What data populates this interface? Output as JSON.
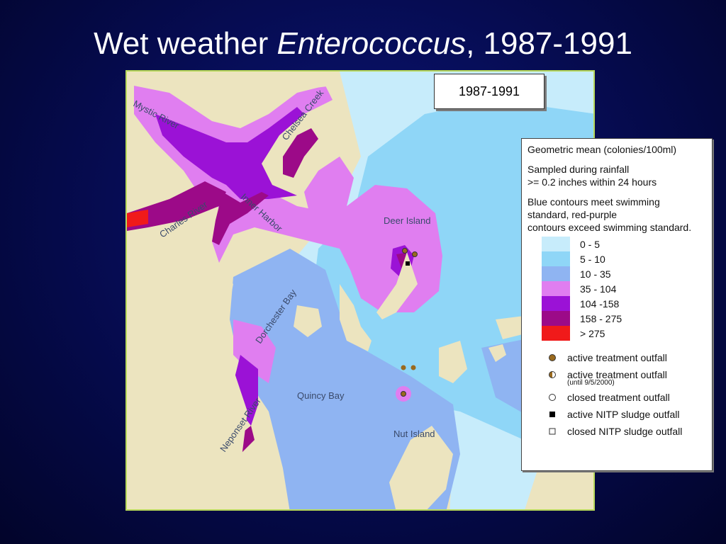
{
  "title": {
    "prefix": "Wet weather ",
    "italic": "Enterococcus",
    "suffix": ", 1987-1991"
  },
  "period_label": "1987-1991",
  "map_labels": {
    "mystic_river": "Mystic River",
    "chelsea_creek": "Chelsea Creek",
    "charles_river": "Charles River",
    "inner_harbor": "Inner Harbor",
    "deer_island": "Deer Island",
    "dorchester_bay": "Dorchester Bay",
    "quincy_bay": "Quincy Bay",
    "neponset_river": "Neponset River",
    "nut_island": "Nut Island"
  },
  "legend": {
    "heading": "Geometric mean (colonies/100ml)",
    "sampling_line1": "Sampled during rainfall",
    "sampling_line2": ">= 0.2 inches within 24 hours",
    "contour_line1": "Blue contours meet swimming",
    "contour_line2": "standard, red-purple",
    "contour_line3": "contours exceed swimming standard.",
    "bins": [
      {
        "label": "0 - 5",
        "color": "#c7ecfb"
      },
      {
        "label": "5 - 10",
        "color": "#8fd6f7"
      },
      {
        "label": "10 - 35",
        "color": "#8fb4f2"
      },
      {
        "label": "35 - 104",
        "color": "#e07ef0"
      },
      {
        "label": "104 -158",
        "color": "#9b12d6"
      },
      {
        "label": "158 - 275",
        "color": "#9c0a88"
      },
      {
        "label": "> 275",
        "color": "#f01a1a"
      }
    ],
    "symbols": {
      "active_outfall": "active treatment outfall",
      "active_outfall_until": "active treatment outfall",
      "until_note": "(until 9/5/2000)",
      "closed_outfall": "closed treatment outfall",
      "active_sludge": "active NITP sludge outfall",
      "closed_sludge": "closed NITP sludge outfall"
    }
  },
  "colors": {
    "land": "#ece4bf",
    "outfall_brown": "#9a6a1e"
  }
}
